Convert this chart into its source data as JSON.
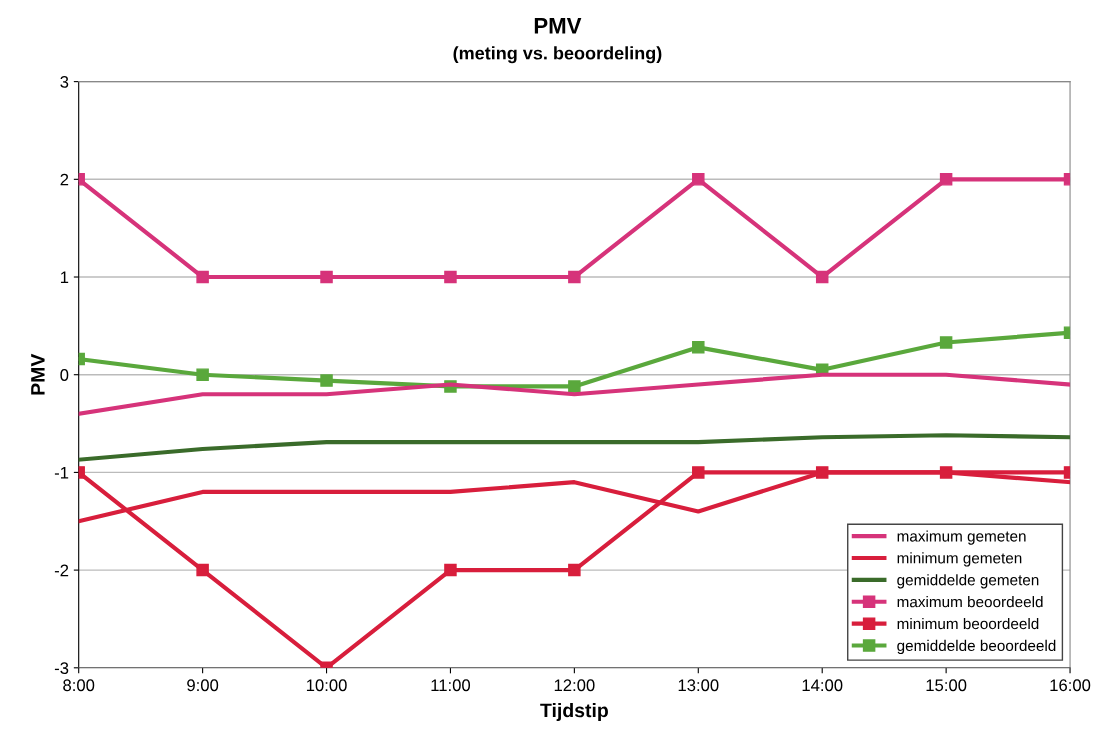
{
  "chart_data": {
    "type": "line",
    "title": "PMV",
    "subtitle": "(meting vs. beoordeling)",
    "xlabel": "Tijdstip",
    "ylabel": "PMV",
    "categories": [
      "8:00",
      "9:00",
      "10:00",
      "11:00",
      "12:00",
      "13:00",
      "14:00",
      "15:00",
      "16:00"
    ],
    "series": [
      {
        "name": "maximum gemeten",
        "color": "#d6337a",
        "marker": "none",
        "values": [
          -0.4,
          -0.2,
          -0.2,
          -0.1,
          -0.2,
          -0.1,
          0,
          0,
          -0.1
        ]
      },
      {
        "name": "minimum gemeten",
        "color": "#d81e3c",
        "marker": "none",
        "values": [
          -1.5,
          -1.2,
          -1.2,
          -1.2,
          -1.1,
          -1.4,
          -1.0,
          -1.0,
          -1.1
        ]
      },
      {
        "name": "gemiddelde gemeten",
        "color": "#3a6b2a",
        "marker": "none",
        "values": [
          -0.87,
          -0.76,
          -0.69,
          -0.69,
          -0.69,
          -0.69,
          -0.64,
          -0.62,
          -0.64
        ]
      },
      {
        "name": "maximum beoordeeld",
        "color": "#d6337a",
        "marker": "square",
        "values": [
          2,
          1,
          1,
          1,
          1,
          2,
          1,
          2,
          2
        ]
      },
      {
        "name": "minimum beoordeeld",
        "color": "#d81e3c",
        "marker": "square",
        "values": [
          -1,
          -2,
          -3,
          -2,
          -2,
          -1,
          -1,
          -1,
          -1
        ]
      },
      {
        "name": "gemiddelde beoordeeld",
        "color": "#5aa83c",
        "marker": "square",
        "values": [
          0.16,
          0,
          -0.06,
          -0.12,
          -0.12,
          0.28,
          0.05,
          0.33,
          0.43
        ]
      }
    ],
    "ylim": [
      -3,
      3
    ],
    "yticks": [
      -3,
      -2,
      -1,
      0,
      1,
      2,
      3
    ],
    "grid": "y",
    "legend": "bottom right",
    "line_style": "solid"
  }
}
